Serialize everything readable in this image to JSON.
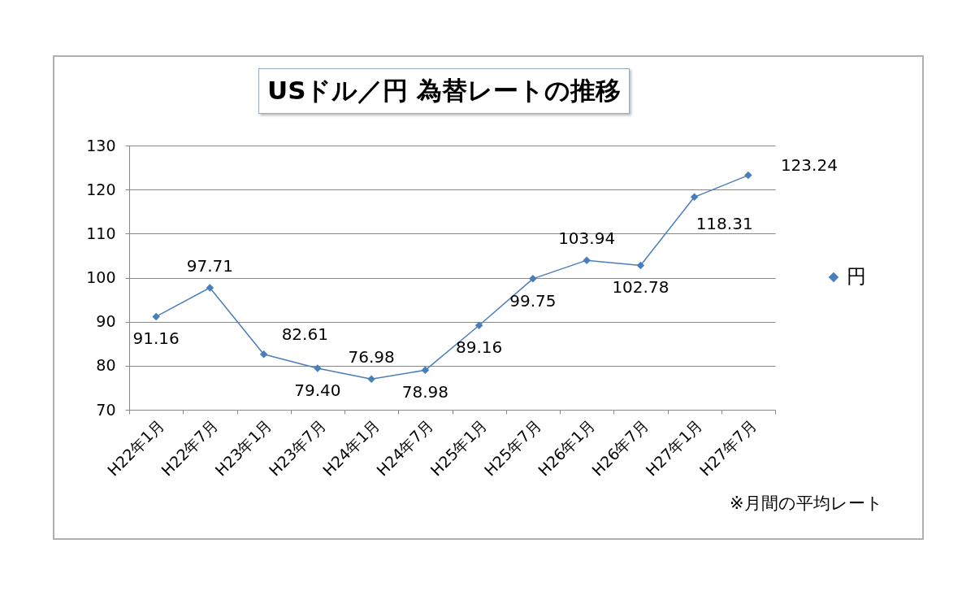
{
  "chart_data": {
    "type": "line",
    "title": "USドル／円 為替レートの推移",
    "categories": [
      "H22年1月",
      "H22年7月",
      "H23年1月",
      "H23年7月",
      "H24年1月",
      "H24年7月",
      "H25年1月",
      "H25年7月",
      "H26年1月",
      "H26年7月",
      "H27年1月",
      "H27年7月"
    ],
    "series": [
      {
        "name": "円",
        "color": "#4a7ebb",
        "values": [
          91.16,
          97.71,
          82.61,
          79.4,
          76.98,
          78.98,
          89.16,
          99.75,
          103.94,
          102.78,
          118.31,
          123.24
        ],
        "value_labels": [
          "91.16",
          "97.71",
          "82.61",
          "79.40",
          "76.98",
          "78.98",
          "89.16",
          "99.75",
          "103.94",
          "102.78",
          "118.31",
          "123.24"
        ]
      }
    ],
    "ylim": [
      70,
      130
    ],
    "yticks": [
      70,
      80,
      90,
      100,
      110,
      120,
      130
    ],
    "grid": "y",
    "legend": "right",
    "marker": "diamond",
    "line_style": "solid",
    "annotations": [
      "※月間の平均レート"
    ]
  }
}
